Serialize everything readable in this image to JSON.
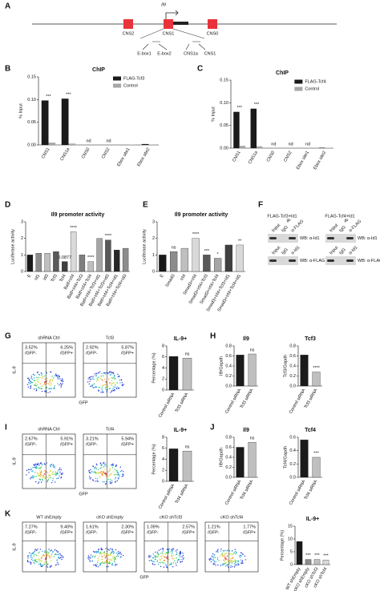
{
  "panel_labels": [
    "A",
    "B",
    "C",
    "D",
    "E",
    "F",
    "G",
    "H",
    "I",
    "J",
    "K"
  ],
  "diagram": {
    "gene": "Il9",
    "regions": [
      "CNS2",
      "CNS1",
      "CNS0"
    ],
    "sites": [
      "E-box1",
      "E-box2",
      "CNS1a",
      "CNS1"
    ]
  },
  "chart_data": [
    {
      "type": "bar",
      "title": "ChIP",
      "ylabel": "% Input",
      "categories": [
        "CNS1",
        "CNS1a",
        "CNS0",
        "CNS2",
        "Ebox site1",
        "Ebox site2"
      ],
      "series": [
        {
          "name": "FLAG-Tcf3",
          "color": "#1a1a1a",
          "values": [
            0.098,
            0.102,
            0,
            0,
            0,
            0.002
          ]
        },
        {
          "name": "Control",
          "color": "#a6a6a6",
          "values": [
            0.005,
            0.003,
            0,
            0,
            0.001,
            0.001
          ]
        }
      ],
      "ylim": [
        0,
        0.15
      ],
      "yticks": [
        {
          "value": 0,
          "label": "0.00"
        },
        0.05,
        {
          "value": 0.1,
          "label": "0.10"
        },
        {
          "value": 0.15,
          "label": "0.15"
        }
      ],
      "significance": [
        "***",
        "***",
        "nd",
        "nd",
        null,
        null
      ],
      "legend": true
    },
    {
      "type": "bar",
      "title": "ChIP",
      "ylabel": "% Input",
      "categories": [
        "CNS1",
        "CNS1a",
        "CNS0",
        "CNS2",
        "Ebox site1",
        "Ebox site2"
      ],
      "series": [
        {
          "name": "FLAG-Tcf4",
          "color": "#1a1a1a",
          "values": [
            0.08,
            0.087,
            0,
            0,
            0,
            0.001
          ]
        },
        {
          "name": "Control",
          "color": "#a6a6a6",
          "values": [
            0.005,
            0.004,
            0,
            0,
            0,
            0.001
          ]
        }
      ],
      "ylim": [
        0,
        0.15
      ],
      "yticks": [
        {
          "value": 0,
          "label": "0.00"
        },
        0.05,
        {
          "value": 0.1,
          "label": "0.10"
        },
        {
          "value": 0.15,
          "label": "0.15"
        }
      ],
      "significance": [
        "***",
        "***",
        "nd",
        "nd",
        "nd",
        null
      ],
      "legend": true
    },
    {
      "type": "bar",
      "title": "Il9 promoter activity",
      "ylabel": "Luciferase activity",
      "categories": [
        "E",
        "Id1",
        "Id3",
        "Tcf3",
        "Tcf4",
        "Batf+Irf4",
        "Batf+Irf4+Tcf3",
        "Batf+Irf4+Tcf4",
        "Batf+Irf4+Tcf3+Id1",
        "Batf+Irf4+Tcf3+Id3",
        "Batf+Irf4+Tcf4+Id1",
        "Batf+Irf4+Tcf4+Id3"
      ],
      "values": [
        1,
        1.1,
        1.1,
        1.2,
        0.6,
        2.4,
        1.0,
        0.6,
        2.0,
        1.9,
        1.3,
        1.4
      ],
      "colors": [
        "#1a1a1a",
        "#8c8c8c",
        "#bfbfbf",
        "#595959",
        "#404040",
        "#d9d9d9",
        "#7f7f7f",
        "#bfbfbf",
        "#a6a6a6",
        "#595959",
        "#262626",
        "#8c8c8c"
      ],
      "ylim": [
        0,
        3
      ],
      "yticks": [
        0,
        1,
        2,
        3
      ],
      "significance": [
        null,
        null,
        null,
        null,
        "0.0877",
        "****",
        null,
        "****",
        null,
        "****",
        null,
        null
      ]
    },
    {
      "type": "bar",
      "title": "Il9 promoter activity",
      "ylabel": "Luciferase activity",
      "categories": [
        "E",
        "Smad3",
        "Irf4",
        "Smad3+Irf4",
        "Smad3+Irf4+Tcf3",
        "Smad3+Irf4+Tcf4",
        "Smad3+Irf4+Tcf3+Id1",
        "Smad3+Irf4+Tcf4+Id1"
      ],
      "values": [
        1,
        1.2,
        1.4,
        2.0,
        1.0,
        0.8,
        1.6,
        1.6
      ],
      "colors": [
        "#1a1a1a",
        "#8c8c8c",
        "#bfbfbf",
        "#d9d9d9",
        "#595959",
        "#a6a6a6",
        "#404040",
        "#d9d9d9"
      ],
      "ylim": [
        0,
        3
      ],
      "yticks": [
        0,
        1,
        2,
        3
      ],
      "significance": [
        null,
        "ns",
        null,
        "****",
        "***",
        "*",
        null,
        "**"
      ]
    },
    {
      "type": "bar",
      "title": "IL-9+",
      "ylabel": "Percentage (%)",
      "categories": [
        "Control siRNA",
        "Tcf3 siRNA"
      ],
      "values": [
        6.1,
        5.8
      ],
      "colors": [
        "#1a1a1a",
        "#bfbfbf"
      ],
      "ylim": [
        0,
        8
      ],
      "yticks": [
        0,
        2,
        4,
        6,
        8
      ],
      "significance": [
        null,
        "ns"
      ]
    },
    {
      "type": "bar",
      "title": "Il9",
      "ylabel": "Il9/Gapdh",
      "categories": [
        "Control siRNA",
        "Tcf3 siRNA"
      ],
      "values": [
        0.62,
        0.64
      ],
      "colors": [
        "#1a1a1a",
        "#bfbfbf"
      ],
      "ylim": [
        0,
        0.8
      ],
      "yticks": [
        {
          "value": 0,
          "label": "0.0"
        },
        0.2,
        0.4,
        0.6,
        0.8
      ],
      "significance": [
        null,
        "ns"
      ]
    },
    {
      "type": "bar",
      "title": "Tcf3",
      "ylabel": "Tcf3/Gapdh",
      "categories": [
        "Control siRNA",
        "Tcf3 siRNA"
      ],
      "values": [
        0.62,
        0.28
      ],
      "colors": [
        "#1a1a1a",
        "#bfbfbf"
      ],
      "ylim": [
        0,
        0.8
      ],
      "yticks": [
        {
          "value": 0,
          "label": "0.0"
        },
        0.2,
        0.4,
        0.6,
        0.8
      ],
      "significance": [
        null,
        "****"
      ]
    },
    {
      "type": "bar",
      "title": "IL-9+",
      "ylabel": "Percentage (%)",
      "categories": [
        "Control siRNA",
        "Tcf4 siRNA"
      ],
      "values": [
        5.9,
        5.5
      ],
      "colors": [
        "#1a1a1a",
        "#bfbfbf"
      ],
      "ylim": [
        0,
        8
      ],
      "yticks": [
        0,
        2,
        4,
        6,
        8
      ],
      "significance": [
        null,
        "ns"
      ]
    },
    {
      "type": "bar",
      "title": "Il9",
      "ylabel": "Il9/Gapdh",
      "categories": [
        "Control siRNA",
        "Tcf4 siRNA"
      ],
      "values": [
        0.6,
        0.7
      ],
      "colors": [
        "#1a1a1a",
        "#bfbfbf"
      ],
      "ylim": [
        0,
        0.8
      ],
      "yticks": [
        {
          "value": 0,
          "label": "0.0"
        },
        0.2,
        0.4,
        0.6,
        0.8
      ],
      "significance": [
        null,
        "ns"
      ]
    },
    {
      "type": "bar",
      "title": "Tcf4",
      "ylabel": "Tcf4/Gapdh",
      "categories": [
        "Control siRNA",
        "Tcf4 siRNA"
      ],
      "values": [
        0.56,
        0.3
      ],
      "colors": [
        "#1a1a1a",
        "#bfbfbf"
      ],
      "ylim": [
        0,
        0.6
      ],
      "yticks": [
        {
          "value": 0,
          "label": "0.0"
        },
        0.2,
        0.4,
        0.6
      ],
      "significance": [
        null,
        "***"
      ]
    },
    {
      "type": "bar",
      "title": "IL-9+",
      "ylabel": "Percentage (%)",
      "categories": [
        "WT shEmpty",
        "cKO shEmpty",
        "cKO shTcf3",
        "cKO shTcf4"
      ],
      "values": [
        9,
        2,
        2,
        1.8
      ],
      "colors": [
        "#1a1a1a",
        "#8c8c8c",
        "#bfbfbf",
        "#d9d9d9"
      ],
      "ylim": [
        0,
        15
      ],
      "yticks": [
        0,
        5,
        10,
        15
      ],
      "significance": [
        null,
        "***",
        "***",
        "***"
      ]
    }
  ],
  "flow_groups": [
    {
      "ylabel": "IL-9",
      "xlabel": "GFP",
      "plots": [
        {
          "title": "shRNA Ctrl",
          "left": "3.52%",
          "left_label": "/GFP-",
          "right": "6.25%",
          "right_label": "/GFP+"
        },
        {
          "title": "Tcf3",
          "left": "2.92%",
          "left_label": "/GFP-",
          "right": "5.87%",
          "right_label": "/GFP+"
        }
      ]
    },
    {
      "ylabel": "IL-9",
      "xlabel": "GFP",
      "plots": [
        {
          "title": "shRNA Ctrl",
          "left": "2.67%",
          "left_label": "/GFP-",
          "right": "5.91%",
          "right_label": "/GFP+"
        },
        {
          "title": "Tcf4",
          "left": "3.21%",
          "left_label": "/GFP-",
          "right": "5.94%",
          "right_label": "/GFP+"
        }
      ]
    },
    {
      "ylabel": "IL-9",
      "xlabel": "GFP",
      "plots": [
        {
          "title": "WT shEmpty",
          "left": "7.27%",
          "left_label": "/GFP-",
          "right": "9.40%",
          "right_label": "/GFP+"
        },
        {
          "title": "cKO shEmpty",
          "left": "1.61%",
          "left_label": "/GFP-",
          "right": "2.30%",
          "right_label": "/GFP+"
        },
        {
          "title": "cKO shTcf3",
          "left": "1.09%",
          "left_label": "/GFP-",
          "right": "2.57%",
          "right_label": "/GFP+"
        },
        {
          "title": "cKO shTcf4",
          "left": "1.21%",
          "left_label": "/GFP-",
          "right": "1.77%",
          "right_label": "/GFP+"
        }
      ]
    }
  ],
  "blots": [
    {
      "title": "FLAG-Tcf3+Id1",
      "ip": "IP",
      "lanes_top": [
        "Input",
        "IgG",
        "α-FLAG"
      ],
      "wb_top": "WB: α-Id1",
      "lanes_bottom": [
        "Input",
        "IgG",
        "α-Id1"
      ],
      "wb_bottom": "WB: α-FLAG"
    },
    {
      "title": "FLAG-Tcf4+Id1",
      "ip": "IP",
      "lanes_top": [
        "Input",
        "IgG",
        "α-FLAG"
      ],
      "wb_top": "WB: α-Id1",
      "lanes_bottom": [
        "Input",
        "IgG",
        "α-Id1"
      ],
      "wb_bottom": "WB: α-FLAG"
    }
  ]
}
